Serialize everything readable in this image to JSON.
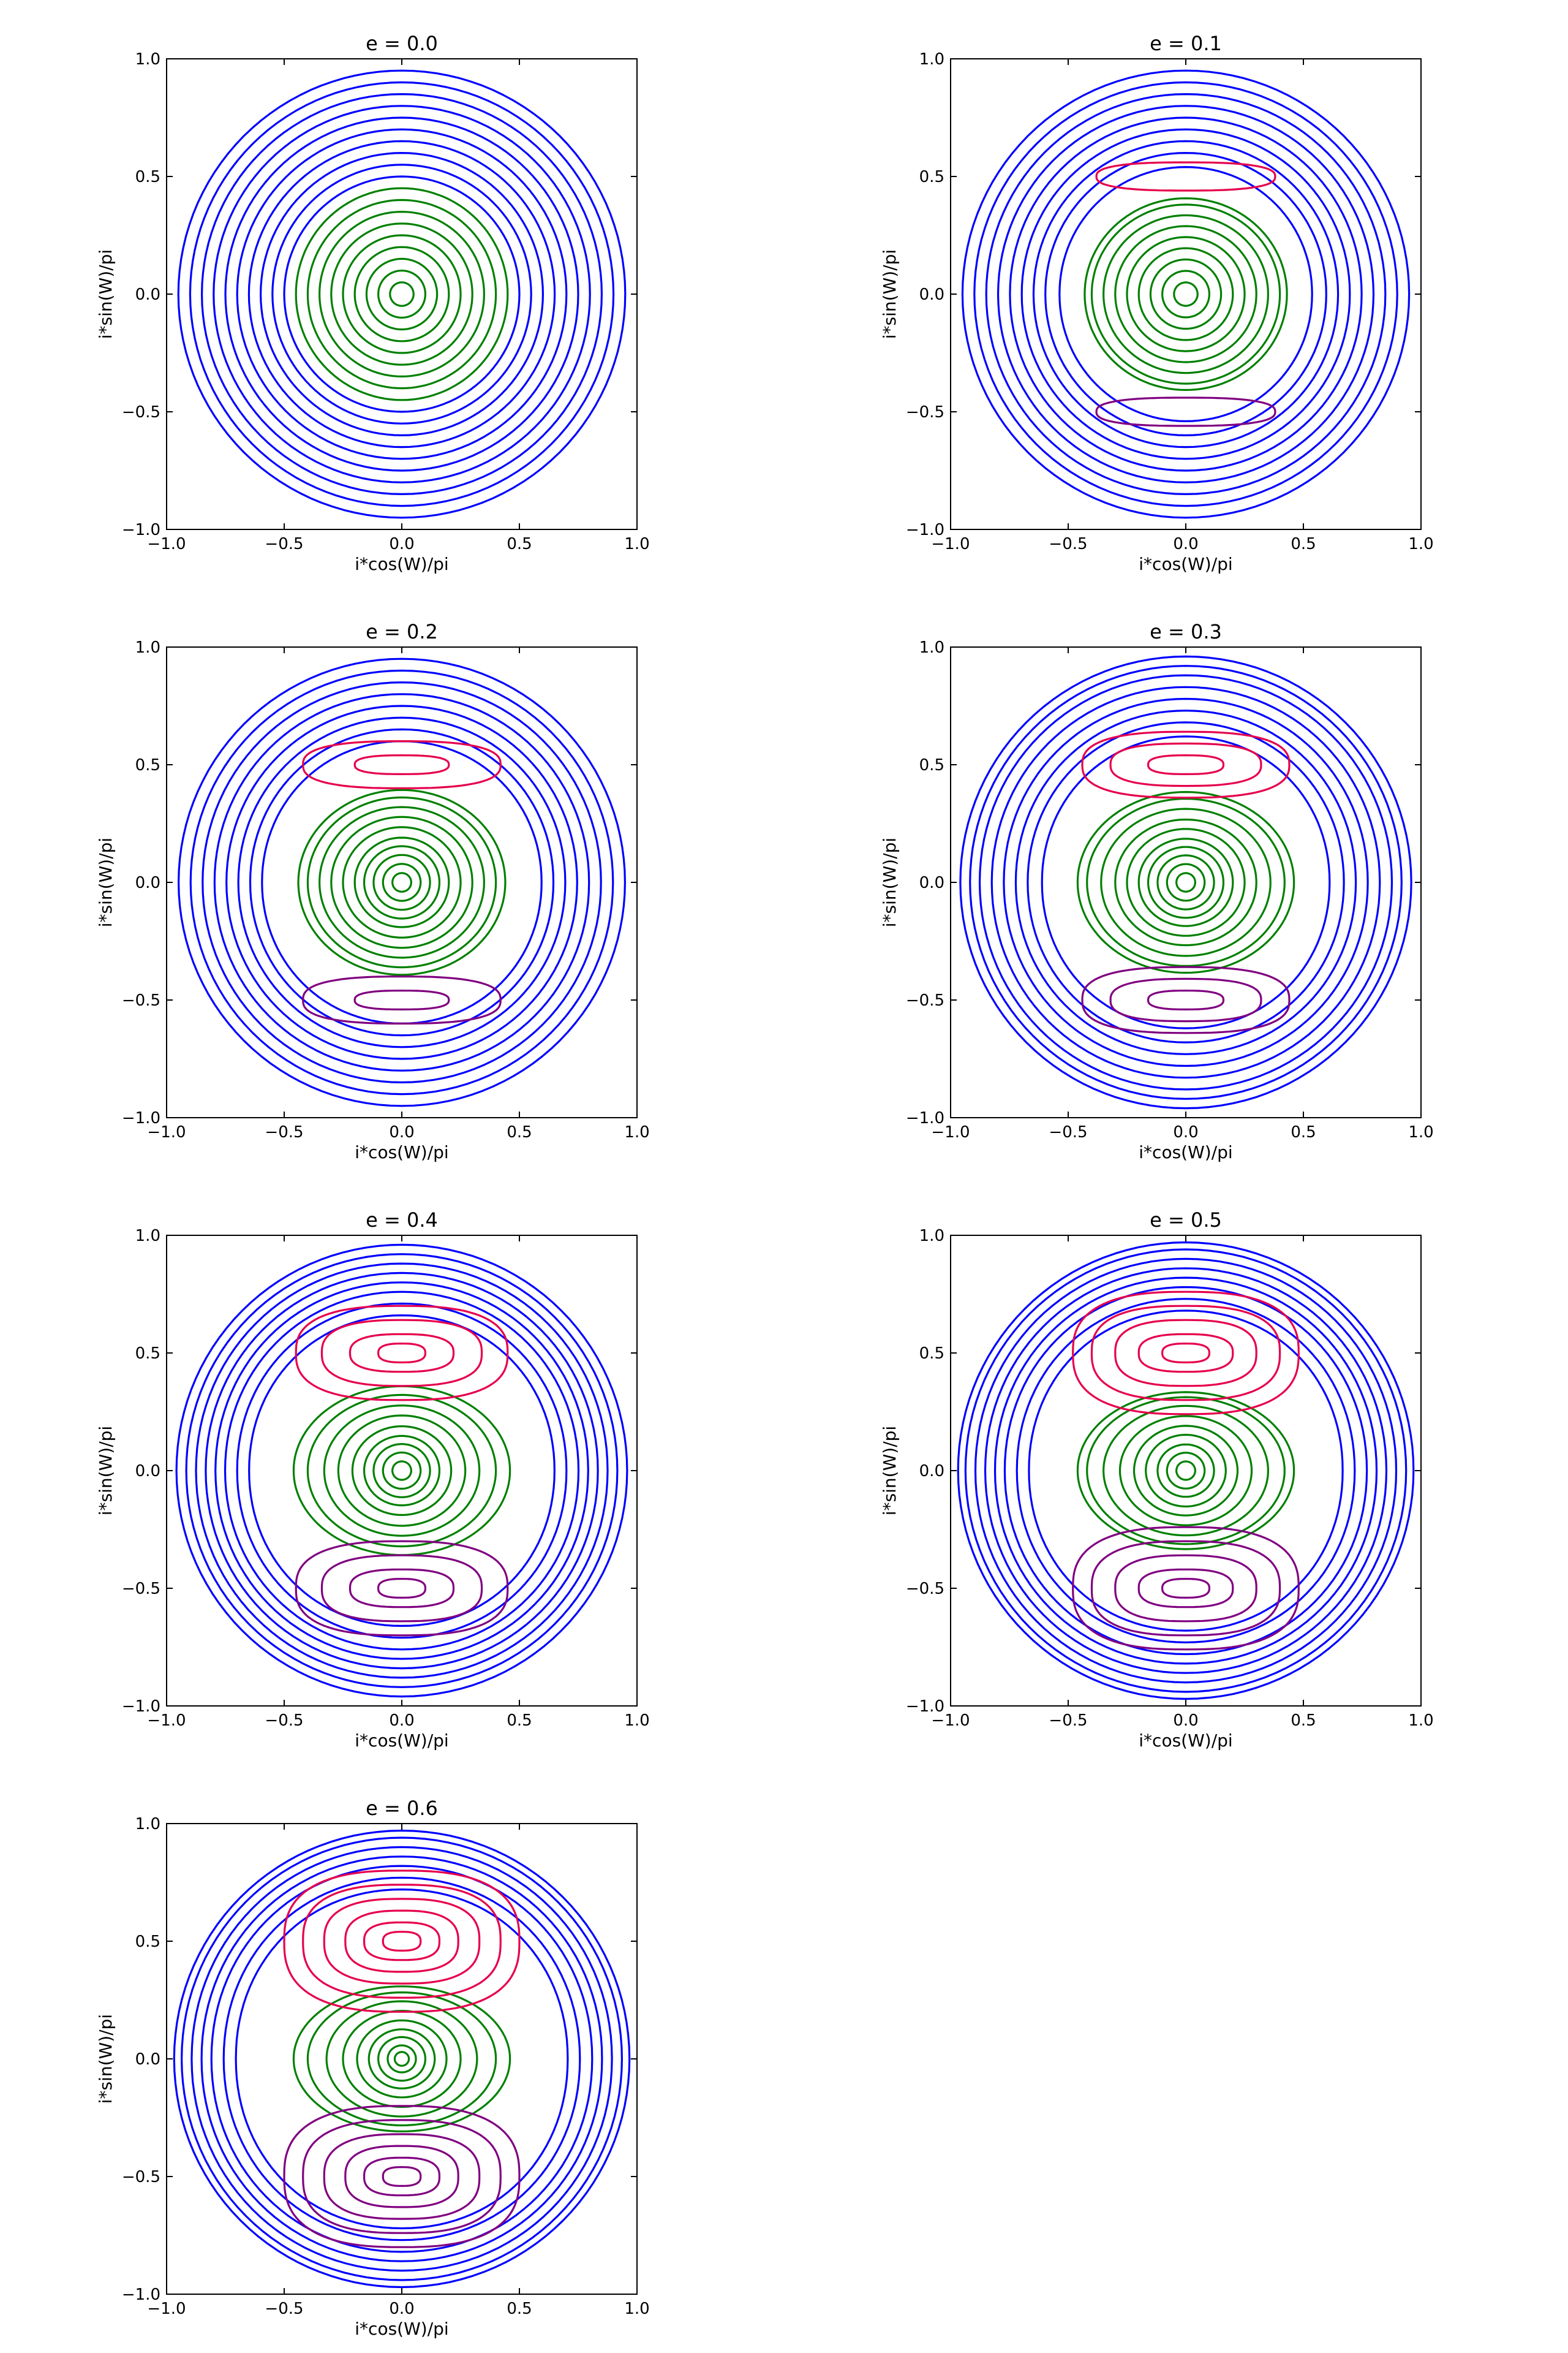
{
  "figure": {
    "type": "contour-grid",
    "columns": 2,
    "xlabel": "i*cos(W)/pi",
    "ylabel": "i*sin(W)/pi",
    "ticks": [
      -1.0,
      -0.5,
      0.0,
      0.5,
      1.0
    ],
    "tick_labels": [
      "−1.0",
      "−0.5",
      "0.0",
      "0.5",
      "1.0"
    ],
    "colors": {
      "circulating": "#0000ff",
      "center_libration": "#008000",
      "upper_libration": "#e6004c",
      "lower_libration": "#800080"
    }
  },
  "chart_data": [
    {
      "type": "contour",
      "title": "e = 0.0",
      "e": 0.0,
      "xlabel": "i*cos(W)/pi",
      "ylabel": "i*sin(W)/pi",
      "xlim": [
        -1.0,
        1.0
      ],
      "ylim": [
        -1.0,
        1.0
      ],
      "series": [
        {
          "family": "circulating",
          "color": "#0000ff",
          "radii": [
            0.5,
            0.55,
            0.6,
            0.65,
            0.7,
            0.75,
            0.8,
            0.85,
            0.9,
            0.95
          ]
        },
        {
          "family": "center_libration",
          "color": "#008000",
          "radii": [
            0.05,
            0.1,
            0.15,
            0.2,
            0.25,
            0.3,
            0.35,
            0.4,
            0.45
          ]
        }
      ]
    },
    {
      "type": "contour",
      "title": "e = 0.1",
      "e": 0.1,
      "xlabel": "i*cos(W)/pi",
      "ylabel": "i*sin(W)/pi",
      "xlim": [
        -1.0,
        1.0
      ],
      "ylim": [
        -1.0,
        1.0
      ],
      "series": [
        {
          "family": "circulating",
          "color": "#0000ff",
          "radii": [
            0.54,
            0.6,
            0.65,
            0.7,
            0.75,
            0.8,
            0.85,
            0.9,
            0.95
          ]
        },
        {
          "family": "center_libration",
          "color": "#008000",
          "radii": [
            0.05,
            0.1,
            0.15,
            0.2,
            0.25,
            0.3,
            0.35,
            0.4,
            0.43
          ]
        },
        {
          "family": "upper_libration",
          "color": "#e6004c",
          "center_y": 0.5,
          "sizes": [
            [
              0.38,
              0.06
            ]
          ]
        },
        {
          "family": "lower_libration",
          "color": "#800080",
          "center_y": -0.5,
          "sizes": [
            [
              0.38,
              0.06
            ]
          ]
        }
      ]
    },
    {
      "type": "contour",
      "title": "e = 0.2",
      "e": 0.2,
      "xlabel": "i*cos(W)/pi",
      "ylabel": "i*sin(W)/pi",
      "xlim": [
        -1.0,
        1.0
      ],
      "ylim": [
        -1.0,
        1.0
      ],
      "series": [
        {
          "family": "circulating",
          "color": "#0000ff",
          "radii": [
            0.6,
            0.65,
            0.7,
            0.75,
            0.8,
            0.85,
            0.9,
            0.95
          ]
        },
        {
          "family": "center_libration",
          "color": "#008000",
          "radii": [
            0.04,
            0.08,
            0.12,
            0.16,
            0.2,
            0.25,
            0.3,
            0.35,
            0.4,
            0.44
          ]
        },
        {
          "family": "upper_libration",
          "color": "#e6004c",
          "center_y": 0.5,
          "sizes": [
            [
              0.2,
              0.04
            ],
            [
              0.42,
              0.1
            ]
          ]
        },
        {
          "family": "lower_libration",
          "color": "#800080",
          "center_y": -0.5,
          "sizes": [
            [
              0.2,
              0.04
            ],
            [
              0.42,
              0.1
            ]
          ]
        }
      ]
    },
    {
      "type": "contour",
      "title": "e = 0.3",
      "e": 0.3,
      "xlabel": "i*cos(W)/pi",
      "ylabel": "i*sin(W)/pi",
      "xlim": [
        -1.0,
        1.0
      ],
      "ylim": [
        -1.0,
        1.0
      ],
      "series": [
        {
          "family": "circulating",
          "color": "#0000ff",
          "radii": [
            0.62,
            0.68,
            0.73,
            0.78,
            0.83,
            0.88,
            0.92,
            0.96
          ]
        },
        {
          "family": "center_libration",
          "color": "#008000",
          "radii": [
            0.04,
            0.08,
            0.12,
            0.16,
            0.2,
            0.25,
            0.3,
            0.36,
            0.42,
            0.46
          ]
        },
        {
          "family": "upper_libration",
          "color": "#e6004c",
          "center_y": 0.5,
          "sizes": [
            [
              0.16,
              0.04
            ],
            [
              0.32,
              0.09
            ],
            [
              0.44,
              0.14
            ]
          ]
        },
        {
          "family": "lower_libration",
          "color": "#800080",
          "center_y": -0.5,
          "sizes": [
            [
              0.16,
              0.04
            ],
            [
              0.32,
              0.09
            ],
            [
              0.44,
              0.14
            ]
          ]
        }
      ]
    },
    {
      "type": "contour",
      "title": "e = 0.4",
      "e": 0.4,
      "xlabel": "i*cos(W)/pi",
      "ylabel": "i*sin(W)/pi",
      "xlim": [
        -1.0,
        1.0
      ],
      "ylim": [
        -1.0,
        1.0
      ],
      "series": [
        {
          "family": "circulating",
          "color": "#0000ff",
          "radii": [
            0.66,
            0.71,
            0.76,
            0.8,
            0.84,
            0.88,
            0.92,
            0.96
          ]
        },
        {
          "family": "center_libration",
          "color": "#008000",
          "radii": [
            0.04,
            0.08,
            0.12,
            0.16,
            0.21,
            0.27,
            0.33,
            0.4,
            0.46
          ]
        },
        {
          "family": "upper_libration",
          "color": "#e6004c",
          "center_y": 0.5,
          "sizes": [
            [
              0.1,
              0.04
            ],
            [
              0.22,
              0.08
            ],
            [
              0.34,
              0.14
            ],
            [
              0.45,
              0.2
            ]
          ]
        },
        {
          "family": "lower_libration",
          "color": "#800080",
          "center_y": -0.5,
          "sizes": [
            [
              0.1,
              0.04
            ],
            [
              0.22,
              0.08
            ],
            [
              0.34,
              0.14
            ],
            [
              0.45,
              0.2
            ]
          ]
        }
      ]
    },
    {
      "type": "contour",
      "title": "e = 0.5",
      "e": 0.5,
      "xlabel": "i*cos(W)/pi",
      "ylabel": "i*sin(W)/pi",
      "xlim": [
        -1.0,
        1.0
      ],
      "ylim": [
        -1.0,
        1.0
      ],
      "series": [
        {
          "family": "circulating",
          "color": "#0000ff",
          "radii": [
            0.68,
            0.73,
            0.78,
            0.82,
            0.86,
            0.9,
            0.94,
            0.97
          ]
        },
        {
          "family": "center_libration",
          "color": "#008000",
          "radii": [
            0.04,
            0.08,
            0.12,
            0.17,
            0.22,
            0.28,
            0.35,
            0.42,
            0.46
          ]
        },
        {
          "family": "upper_libration",
          "color": "#e6004c",
          "center_y": 0.5,
          "sizes": [
            [
              0.1,
              0.04
            ],
            [
              0.2,
              0.08
            ],
            [
              0.3,
              0.14
            ],
            [
              0.4,
              0.2
            ],
            [
              0.48,
              0.26
            ]
          ]
        },
        {
          "family": "lower_libration",
          "color": "#800080",
          "center_y": -0.5,
          "sizes": [
            [
              0.1,
              0.04
            ],
            [
              0.2,
              0.08
            ],
            [
              0.3,
              0.14
            ],
            [
              0.4,
              0.2
            ],
            [
              0.48,
              0.26
            ]
          ]
        }
      ]
    },
    {
      "type": "contour",
      "title": "e = 0.6",
      "e": 0.6,
      "xlabel": "i*cos(W)/pi",
      "ylabel": "i*sin(W)/pi",
      "xlim": [
        -1.0,
        1.0
      ],
      "ylim": [
        -1.0,
        1.0
      ],
      "series": [
        {
          "family": "circulating",
          "color": "#0000ff",
          "radii": [
            0.72,
            0.77,
            0.82,
            0.86,
            0.9,
            0.94,
            0.97
          ]
        },
        {
          "family": "center_libration",
          "color": "#008000",
          "radii": [
            0.03,
            0.06,
            0.1,
            0.14,
            0.19,
            0.25,
            0.32,
            0.4,
            0.46
          ]
        },
        {
          "family": "upper_libration",
          "color": "#e6004c",
          "center_y": 0.5,
          "sizes": [
            [
              0.08,
              0.04
            ],
            [
              0.16,
              0.08
            ],
            [
              0.24,
              0.13
            ],
            [
              0.33,
              0.18
            ],
            [
              0.42,
              0.24
            ],
            [
              0.5,
              0.3
            ]
          ]
        },
        {
          "family": "lower_libration",
          "color": "#800080",
          "center_y": -0.5,
          "sizes": [
            [
              0.08,
              0.04
            ],
            [
              0.16,
              0.08
            ],
            [
              0.24,
              0.13
            ],
            [
              0.33,
              0.18
            ],
            [
              0.42,
              0.24
            ],
            [
              0.5,
              0.3
            ]
          ]
        }
      ]
    }
  ]
}
